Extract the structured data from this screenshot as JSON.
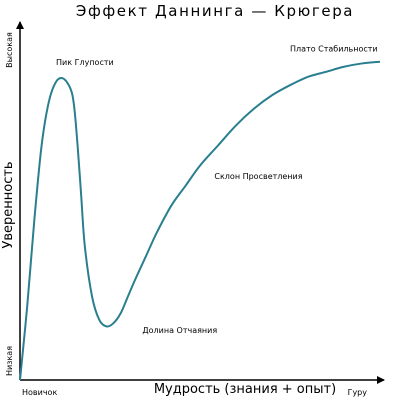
{
  "chart_data": {
    "type": "line",
    "title": "Эффект Даннинга — Крюгера",
    "xlabel": "Мудрость (знания + опыт)",
    "ylabel": "Уверенность",
    "x_ticks": [
      "Новичок",
      "Гуру"
    ],
    "y_ticks": [
      "Низкая",
      "Высокая"
    ],
    "xlim": [
      0,
      100
    ],
    "ylim": [
      0,
      100
    ],
    "grid": false,
    "series": [
      {
        "color": "#2a7f8f",
        "x": [
          0,
          2,
          4,
          6,
          8,
          10,
          12,
          14,
          15,
          16,
          17,
          18,
          20,
          22,
          24,
          26,
          28,
          30,
          32,
          35,
          38,
          42,
          46,
          50,
          55,
          60,
          65,
          70,
          75,
          80,
          85,
          90,
          95,
          100
        ],
        "y": [
          0,
          22,
          48,
          70,
          83,
          89,
          90,
          87,
          82,
          70,
          55,
          40,
          25,
          18,
          16,
          17,
          20,
          25,
          30,
          37,
          44,
          52,
          58,
          64,
          70,
          76,
          81,
          85,
          88,
          90.5,
          92,
          93.5,
          94.5,
          95
        ]
      }
    ],
    "annotations": [
      {
        "text": "Пик Глупости",
        "x": 10,
        "y": 94
      },
      {
        "text": "Долина Отчаяния",
        "x": 34,
        "y": 14
      },
      {
        "text": "Склон Просветления",
        "x": 54,
        "y": 60
      },
      {
        "text": "Плато Стабильности",
        "x": 75,
        "y": 98
      }
    ]
  }
}
